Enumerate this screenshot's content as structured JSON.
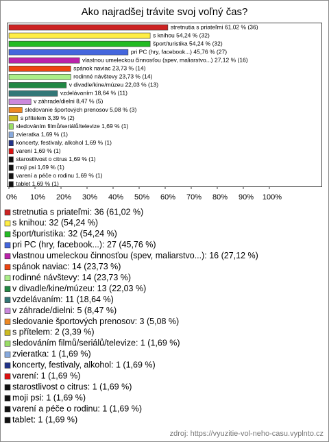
{
  "chart_data": {
    "type": "bar",
    "orientation": "horizontal",
    "title": "Ako najradšej trávite svoj voľný čas?",
    "categories": [
      "stretnutia s priateľmi",
      "s knihou",
      "šport/turistika",
      "pri PC (hry, facebook...)",
      "vlastnou umeleckou činnosťou (spev, maliarstvo...)",
      "spánok naviac",
      "rodinné návštevy",
      "v divadle/kine/múzeu",
      "vzdelávaním",
      "v záhrade/dielni",
      "sledovanie športových prenosov",
      "s přítelem",
      "sledováním filmů/seriálů/televize",
      "zvieratka",
      "koncerty, festivaly, alkohol",
      "varení",
      "starostlivost o citrus",
      "moji psi",
      "varení a péče o rodinu",
      "tablet"
    ],
    "values": [
      61.02,
      54.24,
      54.24,
      45.76,
      27.12,
      23.73,
      23.73,
      22.03,
      18.64,
      8.47,
      5.08,
      3.39,
      1.69,
      1.69,
      1.69,
      1.69,
      1.69,
      1.69,
      1.69,
      1.69
    ],
    "value_labels": [
      "stretnutia s priateľmi 61,02 % (36)",
      "s knihou 54,24 % (32)",
      "šport/turistika 54,24 % (32)",
      "pri PC (hry, facebook...) 45,76 % (27)",
      "vlastnou umeleckou činnosťou (spev, maliarstvo...) 27,12 % (16)",
      "spánok naviac 23,73 % (14)",
      "rodinné návštevy 23,73 % (14)",
      "v divadle/kine/múzeu 22,03 % (13)",
      "vzdelávaním 18,64 % (11)",
      "v záhrade/dielni 8,47 % (5)",
      "sledovanie športových prenosov 5,08 % (3)",
      "s přítelem 3,39 % (2)",
      "sledováním filmů/seriálů/televize 1,69 % (1)",
      "zvieratka 1,69 % (1)",
      "koncerty, festivaly, alkohol 1,69 % (1)",
      "varení 1,69 % (1)",
      "starostlivost o citrus 1,69 % (1)",
      "moji psi 1,69 % (1)",
      "varení a péče o rodinu 1,69 % (1)",
      "tablet 1,69 % (1)"
    ],
    "legend_labels": [
      "stretnutia s priateľmi: 36 (61,02 %)",
      "s knihou: 32 (54,24 %)",
      "šport/turistika: 32 (54,24 %)",
      "pri PC (hry, facebook...): 27 (45,76 %)",
      "vlastnou umeleckou činnosťou (spev, maliarstvo...): 16 (27,12 %)",
      "spánok naviac: 14 (23,73 %)",
      "rodinné návštevy: 14 (23,73 %)",
      "v divadle/kine/múzeu: 13 (22,03 %)",
      "vzdelávaním: 11 (18,64 %)",
      "v záhrade/dielni: 5 (8,47 %)",
      "sledovanie športových prenosov: 3 (5,08 %)",
      "s přítelem: 2 (3,39 %)",
      "sledováním filmů/seriálů/televize: 1 (1,69 %)",
      "zvieratka: 1 (1,69 %)",
      "koncerty, festivaly, alkohol: 1 (1,69 %)",
      "varení: 1 (1,69 %)",
      "starostlivost o citrus: 1 (1,69 %)",
      "moji psi: 1 (1,69 %)",
      "varení a péče o rodinu: 1 (1,69 %)",
      "tablet: 1 (1,69 %)"
    ],
    "colors": [
      "#cc2222",
      "#ffee44",
      "#22bb22",
      "#4466dd",
      "#bb22aa",
      "#ee4411",
      "#aaee88",
      "#228844",
      "#337777",
      "#cc88dd",
      "#ee8822",
      "#ccbb22",
      "#99dd66",
      "#88aadd",
      "#223388",
      "#dd1111",
      "#111111",
      "#111111",
      "#111111",
      "#111111"
    ],
    "xlim": [
      0,
      100
    ],
    "xticks": [
      {
        "value": 0,
        "label": "0%"
      },
      {
        "value": 10,
        "label": "10%"
      },
      {
        "value": 20,
        "label": "20%"
      },
      {
        "value": 30,
        "label": "30%"
      },
      {
        "value": 40,
        "label": "40%"
      },
      {
        "value": 50,
        "label": "50%"
      },
      {
        "value": 60,
        "label": "60%"
      },
      {
        "value": 70,
        "label": "70%"
      },
      {
        "value": 80,
        "label": "80%"
      },
      {
        "value": 90,
        "label": "90%"
      },
      {
        "value": 100,
        "label": "100%"
      }
    ],
    "source": "zdroj: https://vyuzitie-vol-neho-casu.vyplnto.cz"
  }
}
